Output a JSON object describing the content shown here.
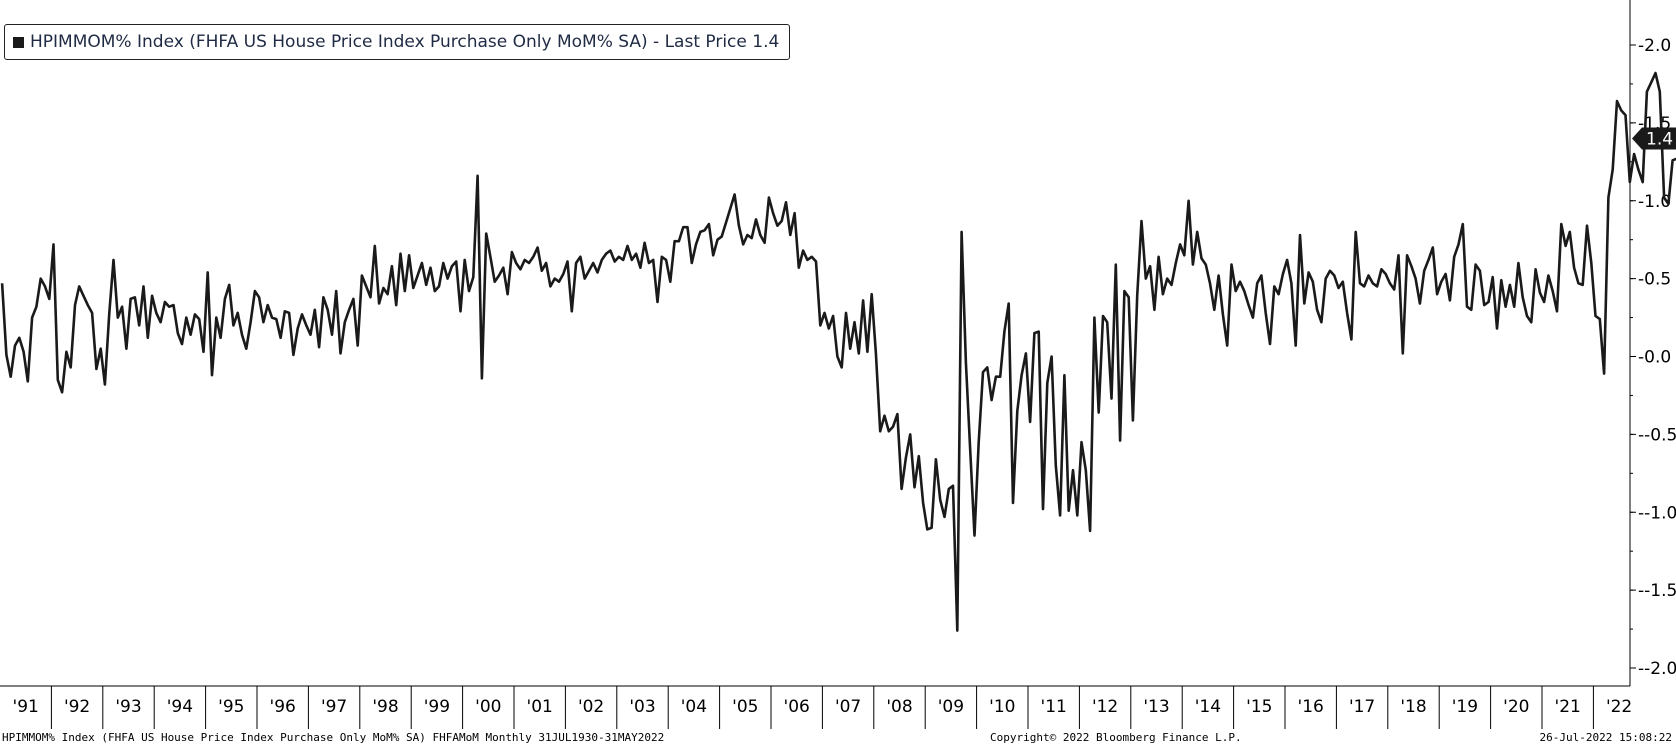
{
  "legend": {
    "text": "HPIMMOM% Index (FHFA US House Price Index Purchase Only MoM% SA) - Last Price 1.4"
  },
  "footer": {
    "left": "HPIMMOM% Index (FHFA US House Price Index Purchase Only MoM% SA) FHFAMoM  Monthly 31JUL1930-31MAY2022",
    "center": "Copyright© 2022 Bloomberg Finance L.P.",
    "right": "26-Jul-2022 15:08:22"
  },
  "chart_data": {
    "type": "line",
    "title": "",
    "xlabel": "",
    "ylabel": "",
    "ylim": [
      -2.0,
      2.0
    ],
    "yticks": [
      "2.0",
      "1.5",
      "1.0",
      "0.5",
      "0.0",
      "-0.5",
      "-1.0",
      "-1.5",
      "-2.0"
    ],
    "ytick_values": [
      2.0,
      1.5,
      1.0,
      0.5,
      0.0,
      -0.5,
      -1.0,
      -1.5,
      -2.0
    ],
    "xticks": [
      "'91",
      "'92",
      "'93",
      "'94",
      "'95",
      "'96",
      "'97",
      "'98",
      "'99",
      "'00",
      "'01",
      "'02",
      "'03",
      "'04",
      "'05",
      "'06",
      "'07",
      "'08",
      "'09",
      "'10",
      "'11",
      "'12",
      "'13",
      "'14",
      "'15",
      "'16",
      "'17",
      "'18",
      "'19",
      "'20",
      "'21",
      "'22"
    ],
    "last_price_label": "1.4",
    "line_color": "#1a1a1a",
    "grid": false,
    "legend_position": "top-left",
    "series": [
      {
        "name": "HPIMMOM% Index",
        "x_start": "1991-01",
        "x_end": "2022-05",
        "values": [
          0.47,
          0.01,
          -0.13,
          0.07,
          0.12,
          0.03,
          -0.16,
          0.25,
          0.32,
          0.5,
          0.45,
          0.37,
          0.72,
          -0.15,
          -0.23,
          0.03,
          -0.07,
          0.33,
          0.45,
          0.39,
          0.33,
          0.28,
          -0.08,
          0.05,
          -0.18,
          0.27,
          0.62,
          0.25,
          0.32,
          0.05,
          0.37,
          0.38,
          0.2,
          0.45,
          0.12,
          0.39,
          0.28,
          0.22,
          0.35,
          0.32,
          0.33,
          0.15,
          0.08,
          0.25,
          0.14,
          0.27,
          0.24,
          0.03,
          0.54,
          -0.12,
          0.25,
          0.12,
          0.37,
          0.46,
          0.2,
          0.28,
          0.14,
          0.05,
          0.22,
          0.42,
          0.38,
          0.22,
          0.33,
          0.25,
          0.24,
          0.12,
          0.29,
          0.28,
          0.01,
          0.18,
          0.27,
          0.2,
          0.14,
          0.3,
          0.06,
          0.38,
          0.3,
          0.14,
          0.42,
          0.02,
          0.22,
          0.3,
          0.37,
          0.07,
          0.52,
          0.45,
          0.38,
          0.71,
          0.34,
          0.44,
          0.4,
          0.58,
          0.33,
          0.66,
          0.42,
          0.65,
          0.44,
          0.52,
          0.6,
          0.46,
          0.57,
          0.42,
          0.45,
          0.6,
          0.5,
          0.58,
          0.61,
          0.29,
          0.62,
          0.42,
          0.51,
          1.16,
          -0.14,
          0.79,
          0.64,
          0.48,
          0.52,
          0.57,
          0.4,
          0.67,
          0.6,
          0.56,
          0.62,
          0.6,
          0.64,
          0.7,
          0.55,
          0.6,
          0.45,
          0.5,
          0.48,
          0.53,
          0.61,
          0.29,
          0.6,
          0.64,
          0.5,
          0.55,
          0.6,
          0.54,
          0.62,
          0.66,
          0.68,
          0.61,
          0.64,
          0.62,
          0.71,
          0.62,
          0.66,
          0.57,
          0.73,
          0.6,
          0.62,
          0.35,
          0.64,
          0.62,
          0.48,
          0.74,
          0.74,
          0.83,
          0.83,
          0.6,
          0.72,
          0.8,
          0.81,
          0.85,
          0.65,
          0.75,
          0.77,
          0.86,
          0.95,
          1.04,
          0.84,
          0.72,
          0.78,
          0.76,
          0.88,
          0.78,
          0.73,
          1.02,
          0.92,
          0.84,
          0.87,
          0.99,
          0.78,
          0.92,
          0.57,
          0.68,
          0.62,
          0.64,
          0.61,
          0.2,
          0.28,
          0.18,
          0.26,
          0.0,
          -0.07,
          0.28,
          0.05,
          0.22,
          0.02,
          0.36,
          0.03,
          0.4,
          0.02,
          -0.48,
          -0.38,
          -0.48,
          -0.45,
          -0.37,
          -0.85,
          -0.65,
          -0.5,
          -0.84,
          -0.64,
          -0.94,
          -1.11,
          -1.1,
          -0.66,
          -0.92,
          -1.03,
          -0.85,
          -0.83,
          -1.76,
          0.8,
          -0.04,
          -0.6,
          -1.15,
          -0.55,
          -0.1,
          -0.07,
          -0.28,
          -0.13,
          -0.13,
          0.16,
          0.34,
          -0.94,
          -0.35,
          -0.12,
          0.02,
          -0.42,
          0.15,
          0.16,
          -0.98,
          -0.17,
          0.0,
          -0.7,
          -1.02,
          -0.12,
          -0.99,
          -0.73,
          -1.02,
          -0.55,
          -0.73,
          -1.12,
          0.25,
          -0.36,
          0.26,
          0.22,
          -0.27,
          0.59,
          -0.54,
          0.42,
          0.38,
          -0.41,
          0.39,
          0.87,
          0.5,
          0.58,
          0.3,
          0.64,
          0.4,
          0.5,
          0.46,
          0.6,
          0.72,
          0.65,
          1.0,
          0.59,
          0.8,
          0.63,
          0.59,
          0.47,
          0.3,
          0.52,
          0.27,
          0.07,
          0.59,
          0.42,
          0.48,
          0.42,
          0.33,
          0.25,
          0.47,
          0.52,
          0.28,
          0.08,
          0.45,
          0.4,
          0.53,
          0.62,
          0.47,
          0.07,
          0.78,
          0.34,
          0.54,
          0.48,
          0.3,
          0.22,
          0.5,
          0.55,
          0.52,
          0.44,
          0.48,
          0.28,
          0.11,
          0.8,
          0.47,
          0.45,
          0.52,
          0.47,
          0.45,
          0.56,
          0.53,
          0.47,
          0.43,
          0.65,
          0.02,
          0.65,
          0.58,
          0.5,
          0.34,
          0.55,
          0.62,
          0.7,
          0.4,
          0.48,
          0.53,
          0.36,
          0.64,
          0.72,
          0.85,
          0.32,
          0.3,
          0.59,
          0.55,
          0.33,
          0.35,
          0.51,
          0.18,
          0.49,
          0.32,
          0.46,
          0.32,
          0.6,
          0.38,
          0.26,
          0.22,
          0.56,
          0.41,
          0.35,
          0.52,
          0.42,
          0.29,
          0.85,
          0.71,
          0.8,
          0.57,
          0.47,
          0.46,
          0.84,
          0.6,
          0.26,
          0.24,
          -0.11,
          1.02,
          1.2,
          1.64,
          1.58,
          1.55,
          1.12,
          1.3,
          1.2,
          1.12,
          1.7,
          1.76,
          1.82,
          1.7,
          1.02,
          0.98,
          1.26,
          1.27,
          1.36,
          1.55,
          1.94,
          1.55,
          1.55,
          1.4
        ]
      }
    ]
  }
}
